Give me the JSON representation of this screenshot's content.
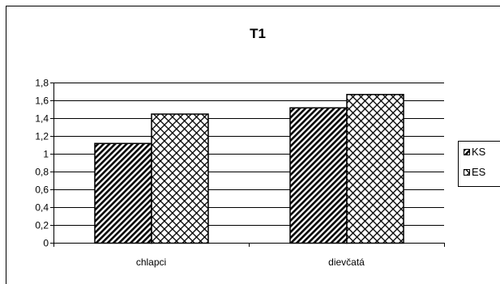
{
  "chart_data": {
    "type": "bar",
    "title": "T1",
    "categories": [
      "chlapci",
      "dievčatá"
    ],
    "series": [
      {
        "name": "KS",
        "values": [
          1.12,
          1.52
        ],
        "pattern": "diagonal-hatch"
      },
      {
        "name": "ES",
        "values": [
          1.45,
          1.67
        ],
        "pattern": "crosshatch"
      }
    ],
    "ylim": [
      0,
      1.8
    ],
    "yticks": [
      "0",
      "0,2",
      "0,4",
      "0,6",
      "0,8",
      "1",
      "1,2",
      "1,4",
      "1,6",
      "1,8"
    ],
    "xlabel": "",
    "ylabel": "",
    "grid": true,
    "legend_position": "right"
  }
}
